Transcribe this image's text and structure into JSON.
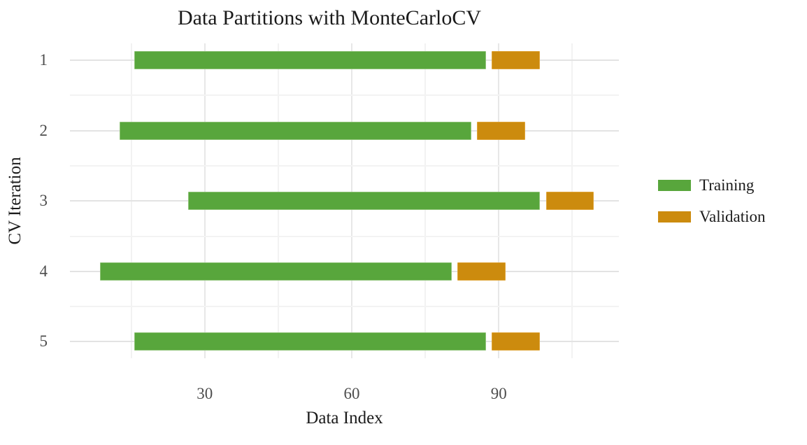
{
  "chart_data": {
    "type": "bar",
    "subtype": "horizontal-range-segments",
    "title": "Data Partitions with MonteCarloCV",
    "xlabel": "Data Index",
    "ylabel": "CV Iteration",
    "categories": [
      "1",
      "2",
      "3",
      "4",
      "5"
    ],
    "series": [
      {
        "name": "Training",
        "color": "#58a63c",
        "edge_color": "#8fc377",
        "ranges": [
          [
            16,
            87
          ],
          [
            13,
            84
          ],
          [
            27,
            98
          ],
          [
            9,
            80
          ],
          [
            16,
            87
          ]
        ]
      },
      {
        "name": "Validation",
        "color": "#cc8b0e",
        "edge_color": "#dfa53a",
        "ranges": [
          [
            89,
            98
          ],
          [
            86,
            95
          ],
          [
            100,
            109
          ],
          [
            82,
            91
          ],
          [
            89,
            98
          ]
        ]
      }
    ],
    "xlim": [
      2.5,
      114.5
    ],
    "x_major_ticks": [
      30,
      60,
      90
    ],
    "x_minor_gridlines": [
      15,
      45,
      75,
      105
    ],
    "bar_extend": 0.4,
    "grid": "major+minor",
    "legend_position": "right-center",
    "legend": [
      {
        "label": "Training",
        "color": "#58a63c"
      },
      {
        "label": "Validation",
        "color": "#cc8b0e"
      }
    ]
  },
  "style": {
    "background": "#ffffff",
    "grid_major_h": "#e3e3e3",
    "grid_major_v": "#e7e7e7",
    "grid_minor": "#f3f3f3",
    "tick_text_color": "#4d4d4d",
    "title_text_color": "#1b1b1b"
  }
}
